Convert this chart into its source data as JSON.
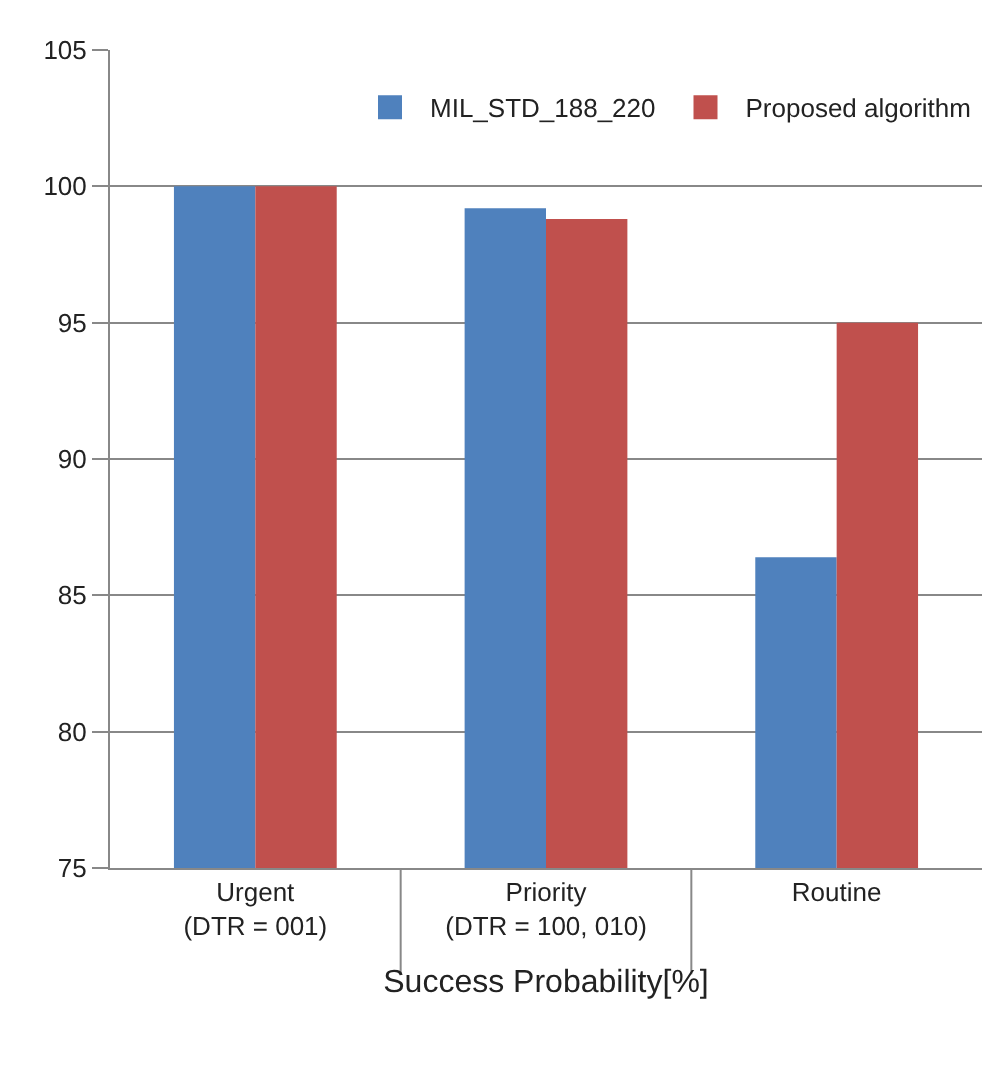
{
  "chart_data": {
    "type": "bar",
    "xlabel": "Success Probability[%]",
    "categories": [
      "Urgent\n(DTR = 001)",
      "Priority\n(DTR = 100, 010)",
      "Routine"
    ],
    "series": [
      {
        "name": "MIL_STD_188_220",
        "color": "#4f81bd",
        "values": [
          100,
          99.2,
          86.4
        ]
      },
      {
        "name": "Proposed algorithm",
        "color": "#c0504d",
        "values": [
          100,
          98.8,
          95
        ]
      }
    ],
    "ylim": [
      75,
      105
    ],
    "yticks": [
      75,
      80,
      85,
      90,
      95,
      100,
      105
    ],
    "grid": "y",
    "legend": "top right"
  }
}
